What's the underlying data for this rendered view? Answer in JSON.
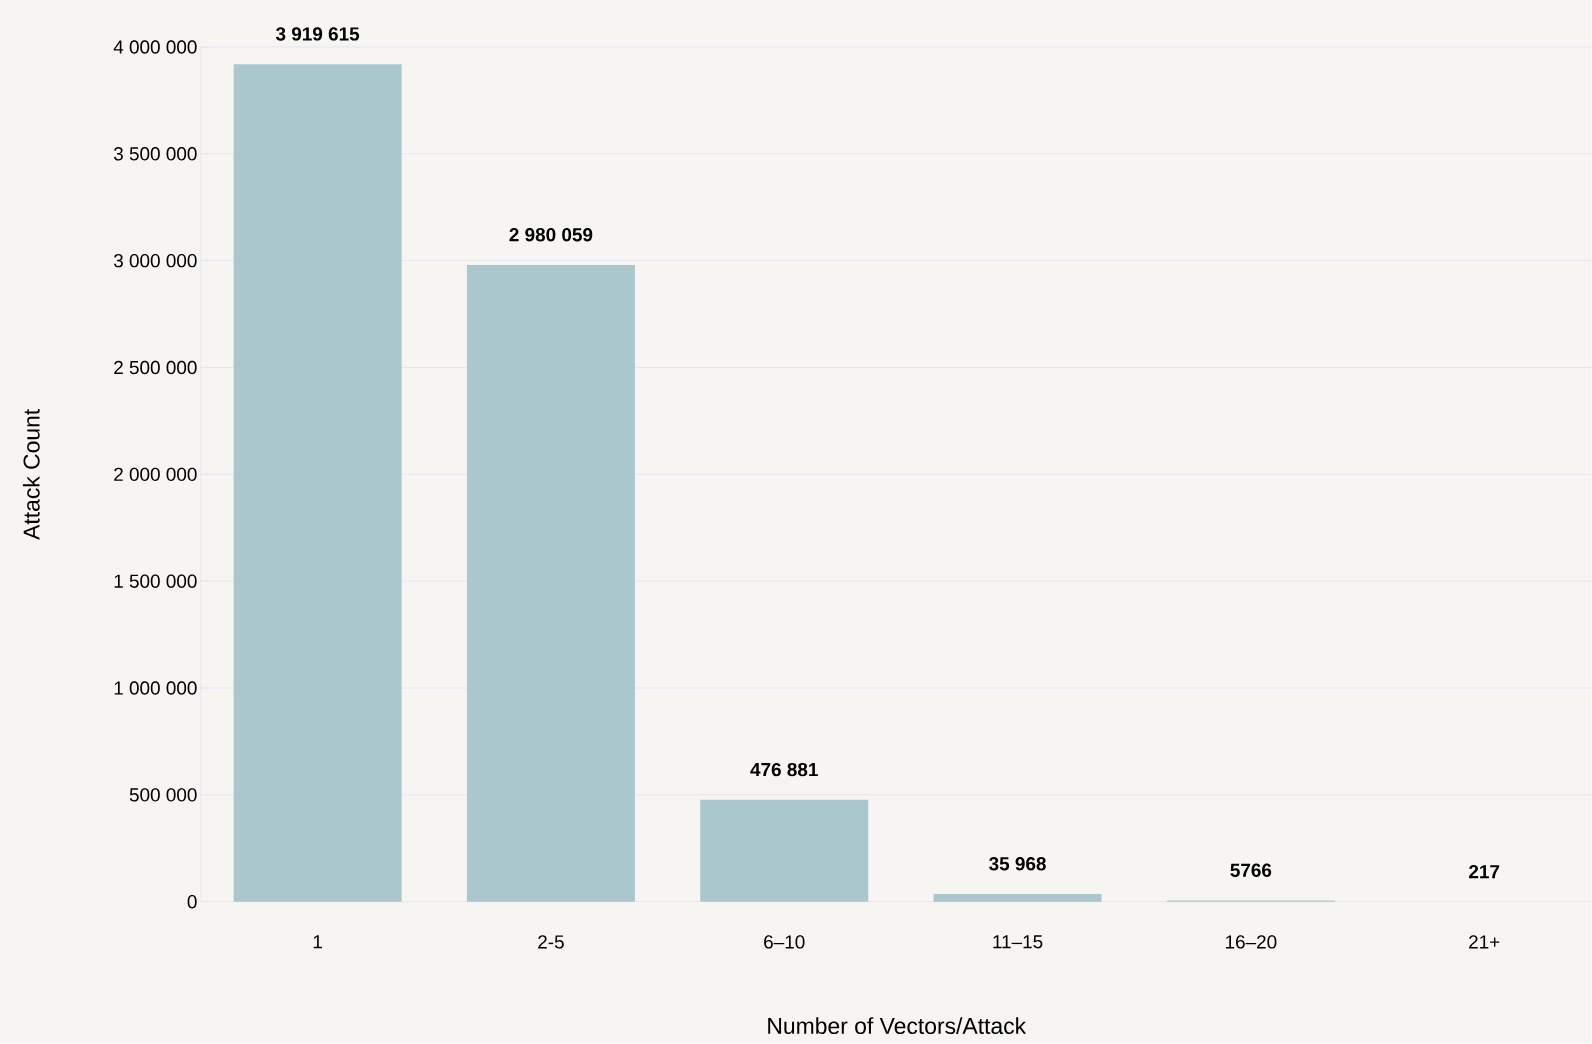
{
  "chart_data": {
    "type": "bar",
    "xlabel": "Number of Vectors/Attack",
    "ylabel": "Attack Count",
    "categories": [
      "1",
      "2-5",
      "6–10",
      "11–15",
      "16–20",
      "21+"
    ],
    "values": [
      3919615,
      2980059,
      476881,
      35968,
      5766,
      217
    ],
    "value_labels": [
      "3 919 615",
      "2 980 059",
      "476 881",
      "35 968",
      "5766",
      "217"
    ],
    "color": "#aac7cd",
    "ylim": [
      0,
      4000000
    ],
    "yticks": [
      0,
      {
        "value": 500000,
        "label": "500 000"
      },
      {
        "value": 1000000,
        "label": "1 000 000"
      },
      {
        "value": 1500000,
        "label": "1 500 000"
      },
      {
        "value": 2000000,
        "label": "2 000 000"
      },
      {
        "value": 2500000,
        "label": "2 500 000"
      },
      {
        "value": 3000000,
        "label": "3 000 000"
      },
      {
        "value": 3500000,
        "label": "3 500 000"
      },
      {
        "value": 4000000,
        "label": "4 000 000"
      }
    ],
    "grid": "y"
  }
}
